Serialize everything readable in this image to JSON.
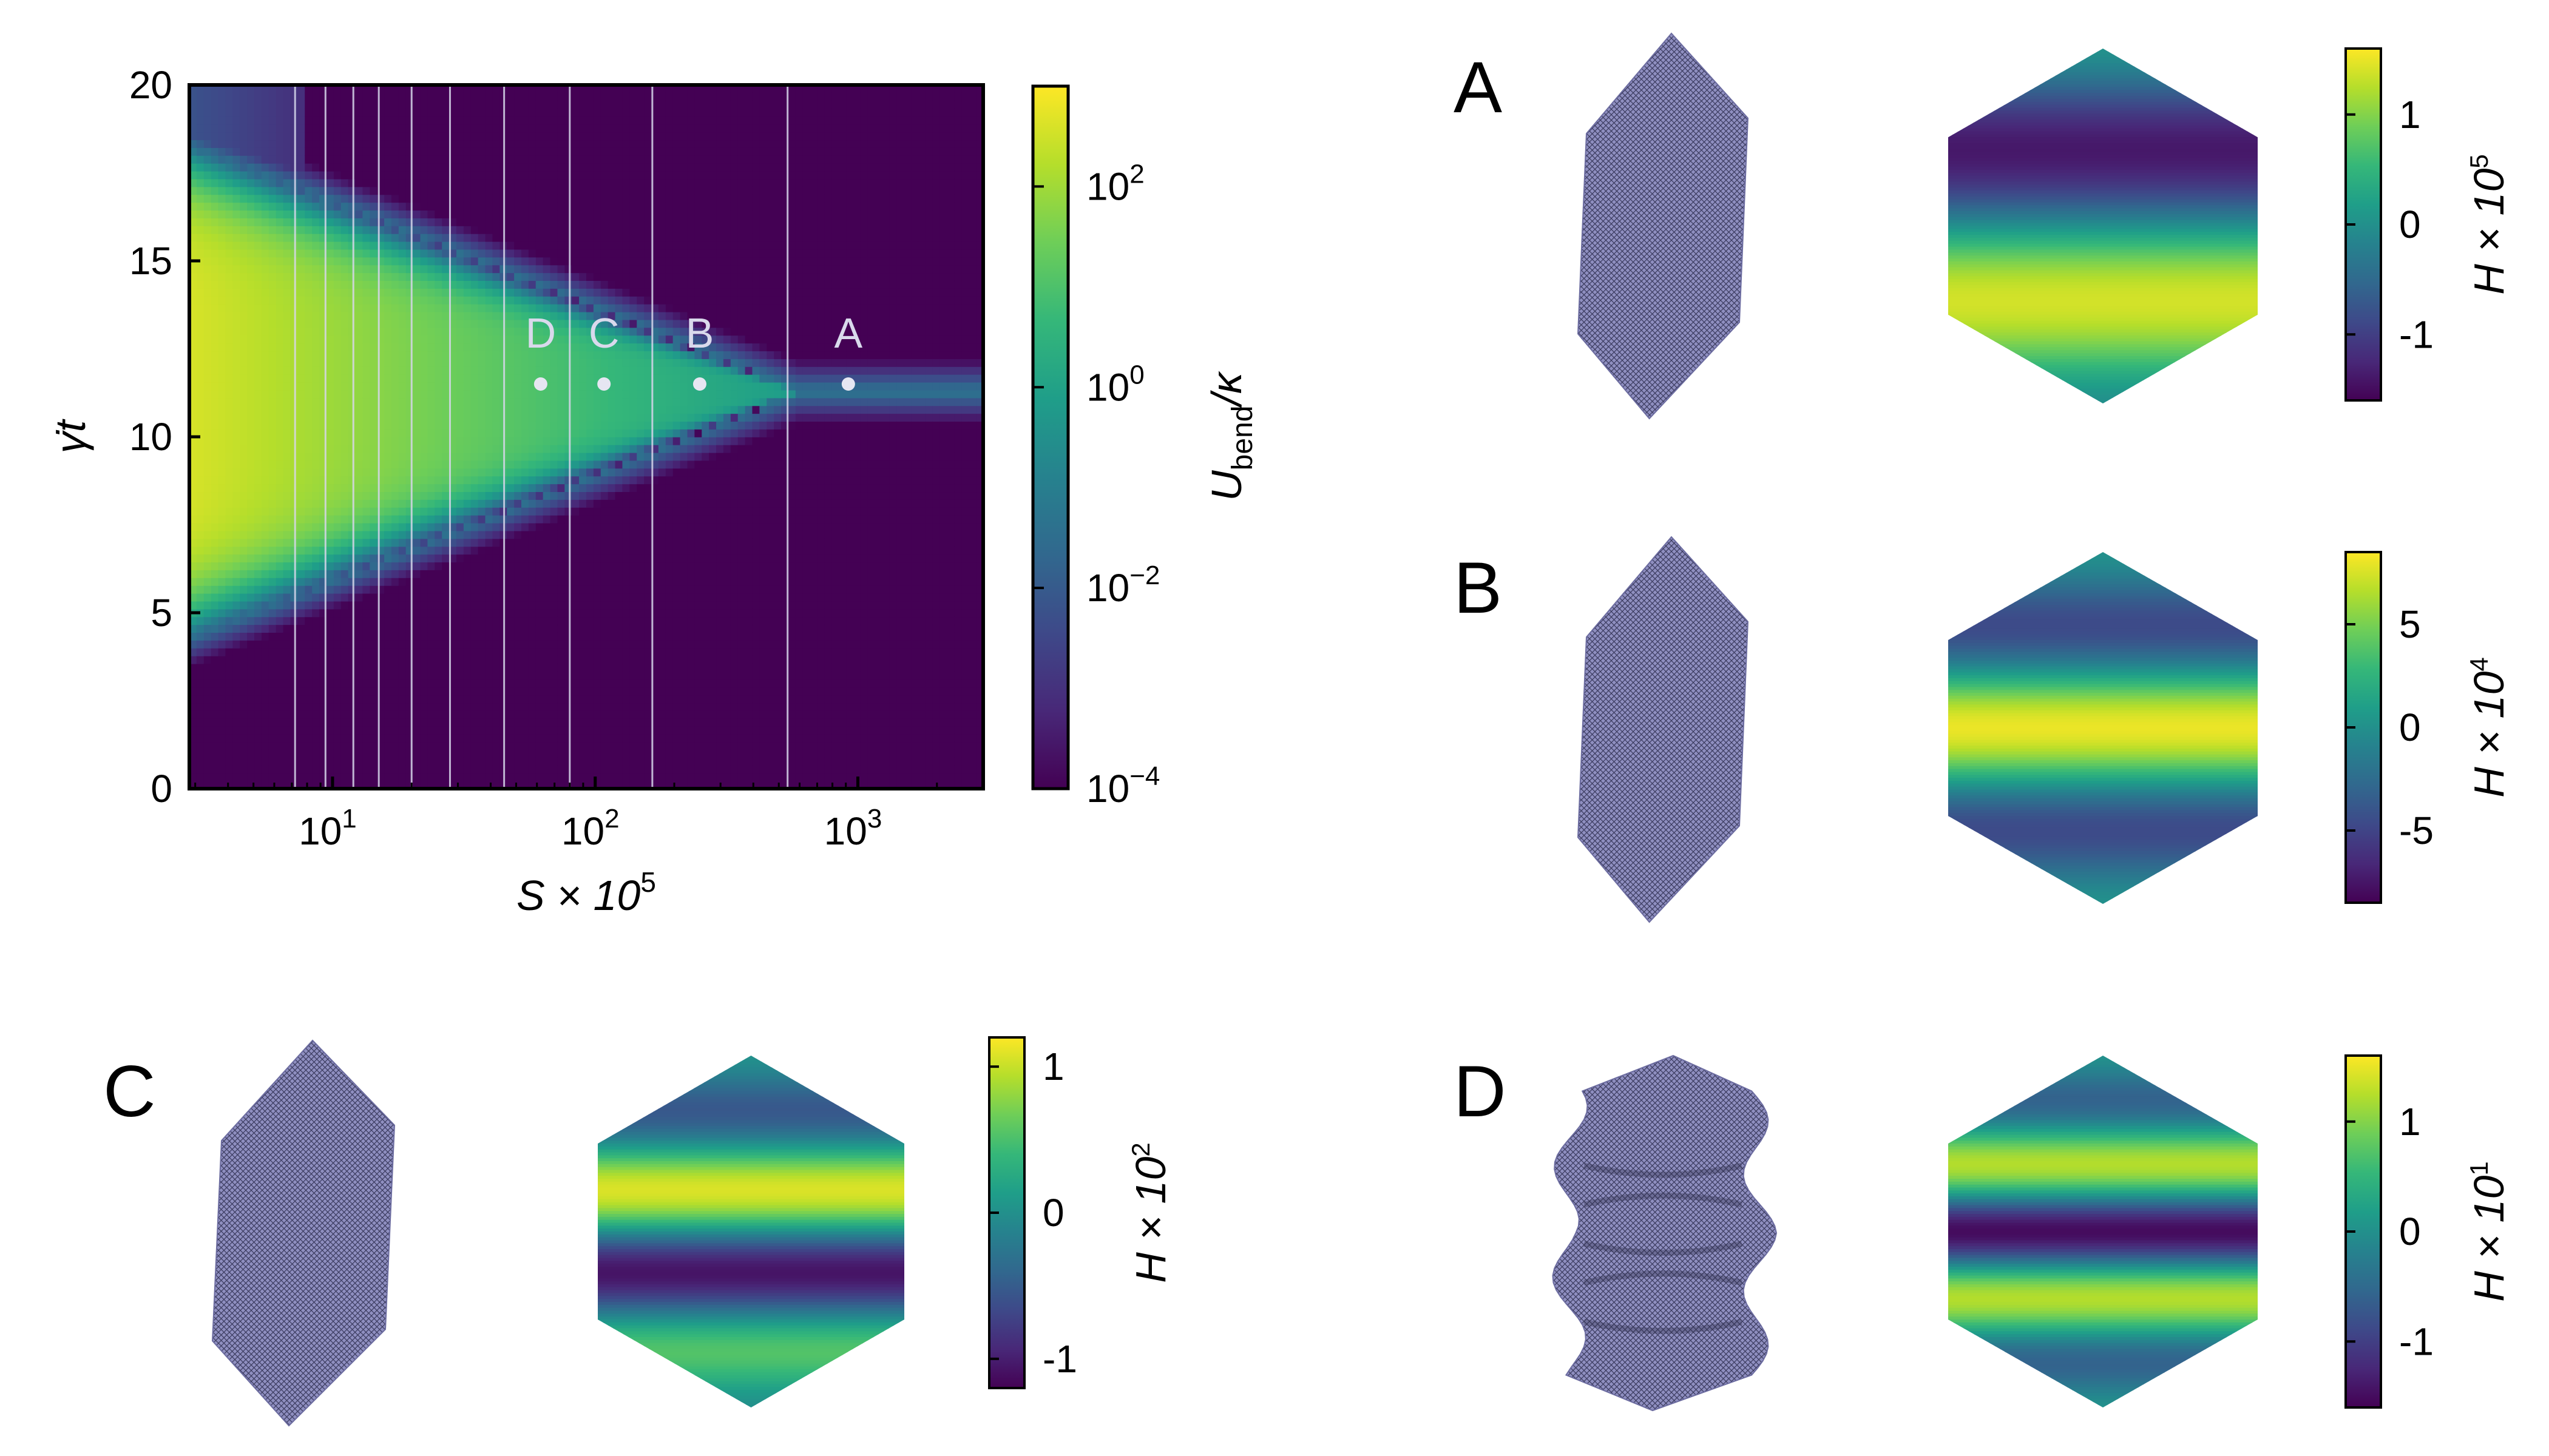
{
  "colors": {
    "viridis": [
      "#440154",
      "#482878",
      "#3e4989",
      "#31688e",
      "#26828e",
      "#1f9e89",
      "#35b779",
      "#6ece58",
      "#b5de2b",
      "#fde725"
    ],
    "sheet": "#8f8fc0",
    "sheet_grid": "#3a3a5e",
    "marker": "#e6e6f2"
  },
  "chart_data": [
    {
      "type": "heatmap",
      "title": "",
      "xlabel": "S × 10",
      "xlabel_sup": "5",
      "ylabel": "γ̇t",
      "x_scale": "log",
      "xlim": [
        2.85,
        3000
      ],
      "ylim": [
        0,
        20
      ],
      "x_ticks": [
        {
          "value": 10,
          "base": "10",
          "exp": "1"
        },
        {
          "value": 100,
          "base": "10",
          "exp": "2"
        },
        {
          "value": 1000,
          "base": "10",
          "exp": "3"
        }
      ],
      "y_ticks": [
        "0",
        "5",
        "10",
        "15",
        "20"
      ],
      "vertical_lines_x": [
        7.2,
        9.4,
        12,
        15,
        20,
        28,
        45,
        80,
        165,
        540
      ],
      "points": [
        {
          "label": "D",
          "x": 62,
          "y": 11.5
        },
        {
          "label": "C",
          "x": 108,
          "y": 11.5
        },
        {
          "label": "B",
          "x": 250,
          "y": 11.5
        },
        {
          "label": "A",
          "x": 920,
          "y": 11.5
        }
      ],
      "colorbar": {
        "label_main": "U",
        "label_sub": "bend",
        "label_tail": "/κ",
        "scale": "log",
        "range": [
          0.0001,
          1000
        ],
        "ticks": [
          {
            "value": 0.0001,
            "base": "10",
            "exp": "−4"
          },
          {
            "value": 0.01,
            "base": "10",
            "exp": "−2"
          },
          {
            "value": 1,
            "base": "10",
            "exp": "0"
          },
          {
            "value": 100,
            "base": "10",
            "exp": "2"
          }
        ]
      }
    },
    {
      "type": "heatmap",
      "panel": "A",
      "colorbar": {
        "label_main": "H × 10",
        "label_exp": "5",
        "range": [
          -1.6,
          1.6
        ],
        "ticks": [
          "1",
          "0",
          "-1"
        ],
        "tick_values": [
          1,
          0,
          -1
        ]
      },
      "field": {
        "modes": 1,
        "amplitude": 1.5,
        "description_free": true
      }
    },
    {
      "type": "heatmap",
      "panel": "B",
      "colorbar": {
        "label_main": "H × 10",
        "label_exp": "4",
        "range": [
          -8.5,
          8.5
        ],
        "ticks": [
          "5",
          "0",
          "-5"
        ],
        "tick_values": [
          5,
          0,
          -5
        ]
      },
      "field": {
        "modes": 2,
        "amplitude": 8
      }
    },
    {
      "type": "heatmap",
      "panel": "C",
      "colorbar": {
        "label_main": "H × 10",
        "label_exp": "2",
        "range": [
          -1.2,
          1.2
        ],
        "ticks": [
          "1",
          "0",
          "-1"
        ],
        "tick_values": [
          1,
          0,
          -1
        ]
      },
      "field": {
        "modes": 3,
        "amplitude": 1.15
      }
    },
    {
      "type": "heatmap",
      "panel": "D",
      "colorbar": {
        "label_main": "H × 10",
        "label_exp": "1",
        "range": [
          -1.6,
          1.6
        ],
        "ticks": [
          "1",
          "0",
          "-1"
        ],
        "tick_values": [
          1,
          0,
          -1
        ]
      },
      "field": {
        "modes": 4,
        "amplitude": 1.5
      }
    }
  ]
}
